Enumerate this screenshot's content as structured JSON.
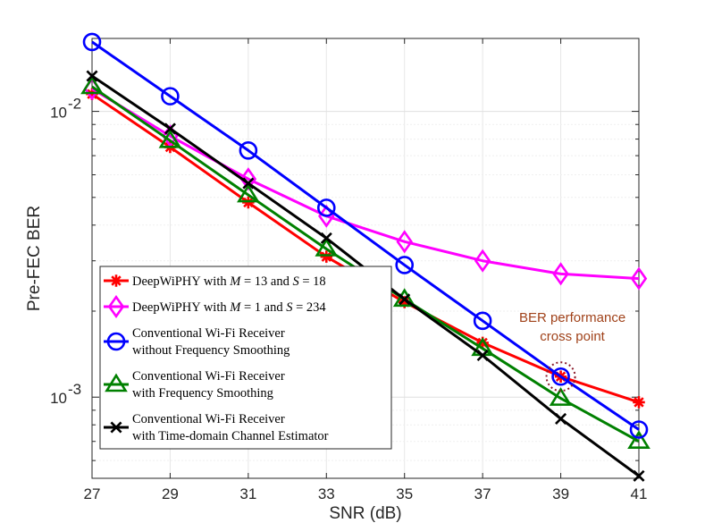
{
  "chart_data": {
    "type": "line",
    "title": "",
    "xlabel": "SNR (dB)",
    "ylabel": "Pre-FEC BER",
    "yscale": "log",
    "xlim": [
      27,
      41
    ],
    "ylim": [
      0.00052,
      0.018
    ],
    "x": [
      27,
      29,
      31,
      33,
      35,
      37,
      39,
      41
    ],
    "xticks": [
      "27",
      "29",
      "31",
      "33",
      "35",
      "37",
      "39",
      "41"
    ],
    "yticks": [
      {
        "value": 0.01,
        "base": "10",
        "exp": "-2"
      },
      {
        "value": 0.001,
        "base": "10",
        "exp": "-3"
      }
    ],
    "grid": true,
    "legend_position": "bottom-left",
    "series": [
      {
        "name": "DeepWiPHY with M = 13 and S = 18",
        "label_parts": [
          "DeepWiPHY with ",
          "M",
          " = 13 and ",
          "S",
          " = 18"
        ],
        "marker": "asterisk",
        "color": "#ff0000",
        "values": [
          0.0115,
          0.0075,
          0.0048,
          0.0031,
          0.00215,
          0.00155,
          0.00118,
          0.00096
        ]
      },
      {
        "name": "DeepWiPHY with M = 1 and S = 234",
        "label_parts": [
          "DeepWiPHY with ",
          "M",
          " = 1 and ",
          "S",
          " = 234"
        ],
        "marker": "diamond",
        "color": "#ff00ff",
        "values": [
          0.012,
          0.0082,
          0.0058,
          0.0043,
          0.0035,
          0.003,
          0.0027,
          0.0026
        ]
      },
      {
        "name": "Conventional Wi-Fi Receiver without Frequency Smoothing",
        "label_lines": [
          "Conventional Wi-Fi Receiver",
          "without Frequency Smoothing"
        ],
        "marker": "circle",
        "color": "#0000ff",
        "values": [
          0.0175,
          0.0113,
          0.0073,
          0.0046,
          0.0029,
          0.00185,
          0.00118,
          0.00077
        ]
      },
      {
        "name": "Conventional Wi-Fi Receiver with Frequency Smoothing",
        "label_lines": [
          "Conventional Wi-Fi Receiver",
          "with Frequency Smoothing"
        ],
        "marker": "triangle",
        "color": "#008000",
        "values": [
          0.0122,
          0.0079,
          0.0051,
          0.0033,
          0.0022,
          0.00148,
          0.00099,
          0.0007
        ]
      },
      {
        "name": "Conventional Wi-Fi Receiver with Time-domain Channel Estimator",
        "label_lines": [
          "Conventional Wi-Fi Receiver",
          "with Time-domain Channel Estimator"
        ],
        "marker": "cross",
        "color": "#000000",
        "values": [
          0.0133,
          0.0087,
          0.0056,
          0.0036,
          0.0022,
          0.0014,
          0.00084,
          0.00053
        ]
      }
    ],
    "annotations": [
      {
        "lines": [
          "BER performance",
          "cross point"
        ],
        "x": 39,
        "y": 0.00118,
        "color": "#a0421a"
      }
    ]
  }
}
